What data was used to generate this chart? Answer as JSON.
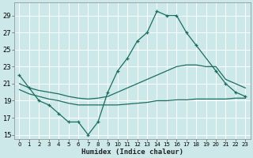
{
  "xlabel": "Humidex (Indice chaleur)",
  "ylabel": "",
  "bg_color": "#cce8e8",
  "grid_color": "#e8f4f4",
  "line_color": "#1a6e60",
  "xlim": [
    -0.5,
    23.5
  ],
  "ylim": [
    14.5,
    30.5
  ],
  "xticks": [
    0,
    1,
    2,
    3,
    4,
    5,
    6,
    7,
    8,
    9,
    10,
    11,
    12,
    13,
    14,
    15,
    16,
    17,
    18,
    19,
    20,
    21,
    22,
    23
  ],
  "yticks": [
    15,
    17,
    19,
    21,
    23,
    25,
    27,
    29
  ],
  "series1_x": [
    0,
    1,
    2,
    3,
    4,
    5,
    6,
    7,
    8,
    9,
    10,
    11,
    12,
    13,
    14,
    15,
    16,
    17,
    18,
    20,
    21,
    22,
    23
  ],
  "series1_y": [
    22,
    20.5,
    19,
    18.5,
    17.5,
    16.5,
    16.5,
    15,
    16.5,
    20,
    22.5,
    24,
    26,
    27,
    29.5,
    29,
    29,
    27,
    25.5,
    22.5,
    21,
    20,
    19.5
  ],
  "series2_x": [
    0,
    1,
    2,
    3,
    4,
    5,
    6,
    7,
    8,
    9,
    10,
    11,
    12,
    13,
    14,
    15,
    16,
    17,
    18,
    19,
    20,
    21,
    22,
    23
  ],
  "series2_y": [
    21.0,
    20.5,
    20.2,
    20.0,
    19.8,
    19.5,
    19.3,
    19.2,
    19.3,
    19.5,
    20.0,
    20.5,
    21.0,
    21.5,
    22.0,
    22.5,
    23.0,
    23.2,
    23.2,
    23.0,
    23.0,
    21.5,
    21.0,
    20.5
  ],
  "series3_x": [
    0,
    1,
    2,
    3,
    4,
    5,
    6,
    7,
    8,
    9,
    10,
    11,
    12,
    13,
    14,
    15,
    16,
    17,
    18,
    19,
    20,
    21,
    22,
    23
  ],
  "series3_y": [
    20.3,
    19.8,
    19.5,
    19.2,
    19.0,
    18.7,
    18.5,
    18.5,
    18.5,
    18.5,
    18.5,
    18.6,
    18.7,
    18.8,
    19.0,
    19.0,
    19.1,
    19.1,
    19.2,
    19.2,
    19.2,
    19.2,
    19.3,
    19.3
  ]
}
